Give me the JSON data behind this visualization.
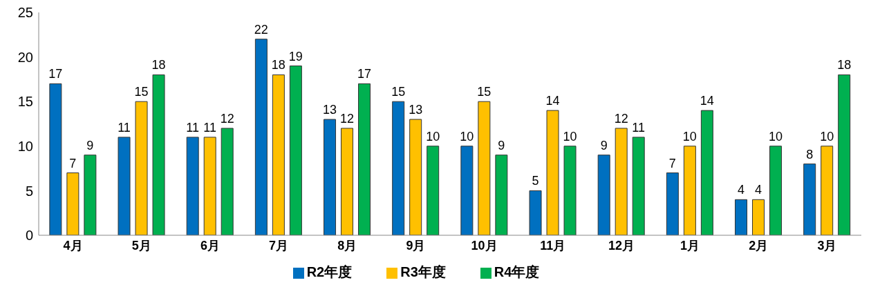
{
  "chart_data": {
    "type": "bar",
    "categories": [
      "4月",
      "5月",
      "6月",
      "7月",
      "8月",
      "9月",
      "10月",
      "11月",
      "12月",
      "1月",
      "2月",
      "3月"
    ],
    "series": [
      {
        "name": "R2年度",
        "color": "#0070c0",
        "values": [
          17,
          11,
          11,
          22,
          13,
          15,
          10,
          5,
          9,
          7,
          4,
          8
        ]
      },
      {
        "name": "R3年度",
        "color": "#ffc000",
        "values": [
          7,
          15,
          11,
          18,
          12,
          13,
          15,
          14,
          12,
          10,
          4,
          10
        ]
      },
      {
        "name": "R4年度",
        "color": "#00b050",
        "values": [
          9,
          18,
          12,
          19,
          17,
          10,
          9,
          10,
          11,
          14,
          10,
          18
        ]
      }
    ],
    "ylim": [
      0,
      25
    ],
    "yticks": [
      0,
      5,
      10,
      15,
      20,
      25
    ],
    "grid": false,
    "legend": "bottom",
    "data_labels": true
  }
}
